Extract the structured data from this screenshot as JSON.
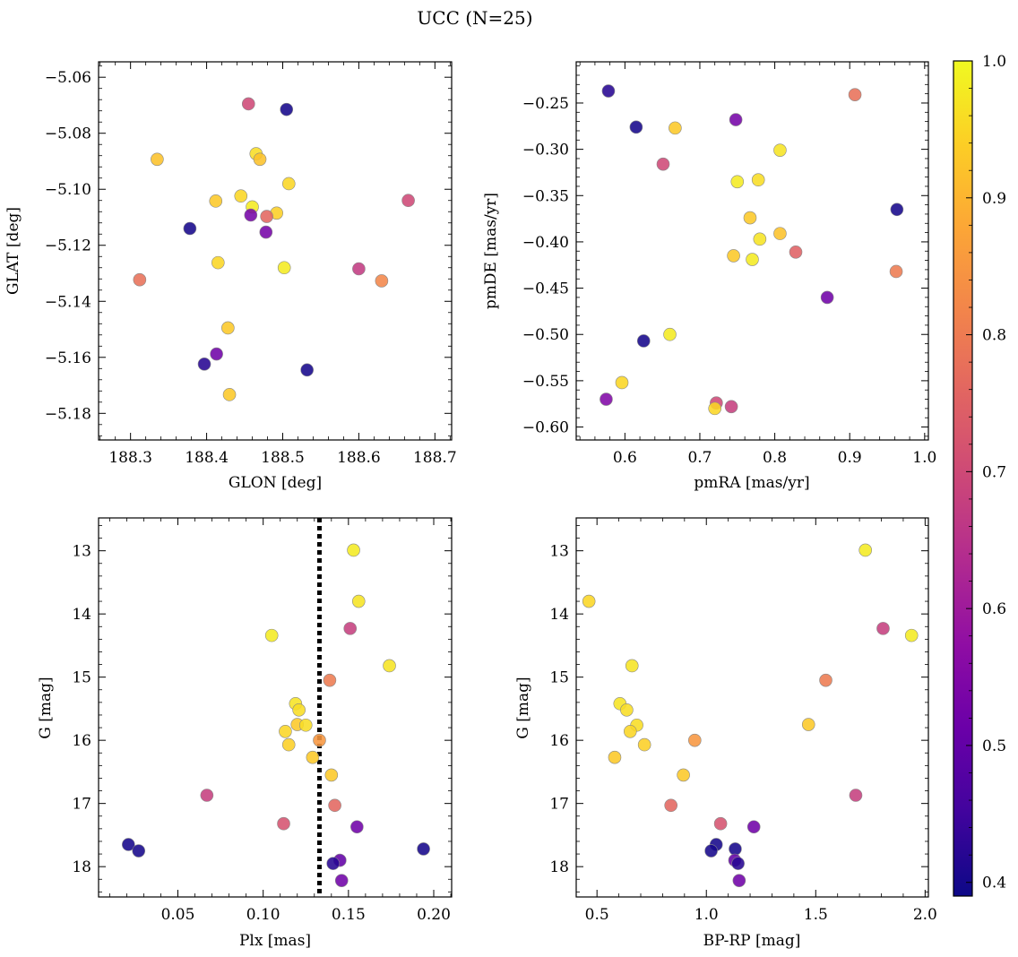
{
  "title": "UCC (N=25)",
  "colorbar": {
    "min": 0.39,
    "max": 1.0,
    "ticks": [
      "0.4",
      "0.5",
      "0.6",
      "0.7",
      "0.8",
      "0.9",
      "1.0"
    ],
    "tick_values": [
      0.4,
      0.5,
      0.6,
      0.7,
      0.8,
      0.9,
      1.0
    ],
    "colormap": "plasma"
  },
  "chart_data": [
    {
      "type": "scatter",
      "xlabel": "GLON [deg]",
      "ylabel": "GLAT [deg]",
      "xlim": [
        188.258,
        188.722
      ],
      "ylim": [
        -5.1895,
        -5.0545
      ],
      "y_inverted": false,
      "xticks": [
        188.3,
        188.4,
        188.5,
        188.6,
        188.7
      ],
      "xtick_labels": [
        "188.3",
        "188.4",
        "188.5",
        "188.6",
        "188.7"
      ],
      "yticks": [
        -5.06,
        -5.08,
        -5.1,
        -5.12,
        -5.14,
        -5.16,
        -5.18
      ],
      "ytick_labels": [
        "−5.06",
        "−5.08",
        "−5.10",
        "−5.12",
        "−5.14",
        "−5.16",
        "−5.18"
      ],
      "points": [
        {
          "x": 188.455,
          "y": -5.0695,
          "c": 0.7
        },
        {
          "x": 188.505,
          "y": -5.0715,
          "c": 0.4
        },
        {
          "x": 188.335,
          "y": -5.0893,
          "c": 0.92
        },
        {
          "x": 188.465,
          "y": -5.0873,
          "c": 0.96
        },
        {
          "x": 188.47,
          "y": -5.0893,
          "c": 0.92
        },
        {
          "x": 188.508,
          "y": -5.098,
          "c": 0.95
        },
        {
          "x": 188.445,
          "y": -5.1024,
          "c": 0.95
        },
        {
          "x": 188.412,
          "y": -5.1042,
          "c": 0.93
        },
        {
          "x": 188.46,
          "y": -5.1063,
          "c": 0.98
        },
        {
          "x": 188.665,
          "y": -5.104,
          "c": 0.7
        },
        {
          "x": 188.492,
          "y": -5.1085,
          "c": 0.94
        },
        {
          "x": 188.458,
          "y": -5.1092,
          "c": 0.53
        },
        {
          "x": 188.479,
          "y": -5.1097,
          "c": 0.76
        },
        {
          "x": 188.378,
          "y": -5.114,
          "c": 0.4
        },
        {
          "x": 188.478,
          "y": -5.1153,
          "c": 0.53
        },
        {
          "x": 188.415,
          "y": -5.1262,
          "c": 0.95
        },
        {
          "x": 188.502,
          "y": -5.128,
          "c": 0.98
        },
        {
          "x": 188.6,
          "y": -5.1284,
          "c": 0.67
        },
        {
          "x": 188.312,
          "y": -5.1323,
          "c": 0.78
        },
        {
          "x": 188.63,
          "y": -5.1327,
          "c": 0.82
        },
        {
          "x": 188.428,
          "y": -5.1495,
          "c": 0.93
        },
        {
          "x": 188.413,
          "y": -5.1588,
          "c": 0.52
        },
        {
          "x": 188.397,
          "y": -5.1624,
          "c": 0.42
        },
        {
          "x": 188.532,
          "y": -5.1645,
          "c": 0.4
        },
        {
          "x": 188.43,
          "y": -5.1733,
          "c": 0.93
        }
      ]
    },
    {
      "type": "scatter",
      "xlabel": "pmRA [mas/yr]",
      "ylabel": "pmDE [mas/yr]",
      "xlim": [
        0.535,
        1.005
      ],
      "ylim": [
        -0.614,
        -0.2055
      ],
      "y_inverted": false,
      "xticks": [
        0.6,
        0.7,
        0.8,
        0.9,
        1.0
      ],
      "xtick_labels": [
        "0.6",
        "0.7",
        "0.8",
        "0.9",
        "1.0"
      ],
      "yticks": [
        -0.25,
        -0.3,
        -0.35,
        -0.4,
        -0.45,
        -0.5,
        -0.55,
        -0.6
      ],
      "ytick_labels": [
        "−0.25",
        "−0.30",
        "−0.35",
        "−0.40",
        "−0.45",
        "−0.50",
        "−0.55",
        "−0.60"
      ],
      "points": [
        {
          "x": 0.578,
          "y": -0.237,
          "c": 0.42
        },
        {
          "x": 0.907,
          "y": -0.241,
          "c": 0.78
        },
        {
          "x": 0.748,
          "y": -0.268,
          "c": 0.53
        },
        {
          "x": 0.615,
          "y": -0.276,
          "c": 0.4
        },
        {
          "x": 0.667,
          "y": -0.277,
          "c": 0.93
        },
        {
          "x": 0.807,
          "y": -0.301,
          "c": 0.97
        },
        {
          "x": 0.651,
          "y": -0.316,
          "c": 0.7
        },
        {
          "x": 0.778,
          "y": -0.333,
          "c": 0.96
        },
        {
          "x": 0.75,
          "y": -0.335,
          "c": 0.98
        },
        {
          "x": 0.963,
          "y": -0.365,
          "c": 0.4
        },
        {
          "x": 0.767,
          "y": -0.374,
          "c": 0.93
        },
        {
          "x": 0.807,
          "y": -0.391,
          "c": 0.92
        },
        {
          "x": 0.78,
          "y": -0.397,
          "c": 0.97
        },
        {
          "x": 0.828,
          "y": -0.411,
          "c": 0.75
        },
        {
          "x": 0.745,
          "y": -0.415,
          "c": 0.93
        },
        {
          "x": 0.77,
          "y": -0.419,
          "c": 0.98
        },
        {
          "x": 0.962,
          "y": -0.432,
          "c": 0.8
        },
        {
          "x": 0.87,
          "y": -0.46,
          "c": 0.52
        },
        {
          "x": 0.66,
          "y": -0.5,
          "c": 0.98
        },
        {
          "x": 0.625,
          "y": -0.507,
          "c": 0.4
        },
        {
          "x": 0.596,
          "y": -0.552,
          "c": 0.95
        },
        {
          "x": 0.575,
          "y": -0.57,
          "c": 0.55
        },
        {
          "x": 0.722,
          "y": -0.574,
          "c": 0.7
        },
        {
          "x": 0.742,
          "y": -0.578,
          "c": 0.68
        },
        {
          "x": 0.72,
          "y": -0.58,
          "c": 0.95
        }
      ]
    },
    {
      "type": "scatter",
      "xlabel": "Plx [mas]",
      "ylabel": "G [mag]",
      "xlim": [
        0.0035,
        0.2105
      ],
      "ylim": [
        18.48,
        12.48
      ],
      "y_inverted": true,
      "xticks": [
        0.05,
        0.1,
        0.15,
        0.2
      ],
      "xtick_labels": [
        "0.05",
        "0.10",
        "0.15",
        "0.20"
      ],
      "yticks": [
        13,
        14,
        15,
        16,
        17,
        18
      ],
      "ytick_labels": [
        "13",
        "14",
        "15",
        "16",
        "17",
        "18"
      ],
      "vline": {
        "x": 0.133,
        "style": "dotted"
      },
      "points": [
        {
          "x": 0.153,
          "y": 12.99,
          "c": 0.98
        },
        {
          "x": 0.156,
          "y": 13.8,
          "c": 0.97
        },
        {
          "x": 0.151,
          "y": 14.23,
          "c": 0.68
        },
        {
          "x": 0.105,
          "y": 14.34,
          "c": 0.98
        },
        {
          "x": 0.174,
          "y": 14.82,
          "c": 0.97
        },
        {
          "x": 0.139,
          "y": 15.05,
          "c": 0.8
        },
        {
          "x": 0.119,
          "y": 15.42,
          "c": 0.97
        },
        {
          "x": 0.121,
          "y": 15.52,
          "c": 0.96
        },
        {
          "x": 0.12,
          "y": 15.75,
          "c": 0.93
        },
        {
          "x": 0.125,
          "y": 15.76,
          "c": 0.96
        },
        {
          "x": 0.113,
          "y": 15.86,
          "c": 0.95
        },
        {
          "x": 0.133,
          "y": 16.0,
          "c": 0.85
        },
        {
          "x": 0.115,
          "y": 16.07,
          "c": 0.94
        },
        {
          "x": 0.129,
          "y": 16.27,
          "c": 0.93
        },
        {
          "x": 0.14,
          "y": 16.55,
          "c": 0.93
        },
        {
          "x": 0.067,
          "y": 16.87,
          "c": 0.68
        },
        {
          "x": 0.142,
          "y": 17.03,
          "c": 0.76
        },
        {
          "x": 0.112,
          "y": 17.32,
          "c": 0.72
        },
        {
          "x": 0.155,
          "y": 17.37,
          "c": 0.52
        },
        {
          "x": 0.021,
          "y": 17.65,
          "c": 0.4
        },
        {
          "x": 0.194,
          "y": 17.72,
          "c": 0.4
        },
        {
          "x": 0.027,
          "y": 17.75,
          "c": 0.4
        },
        {
          "x": 0.145,
          "y": 17.9,
          "c": 0.5
        },
        {
          "x": 0.141,
          "y": 17.95,
          "c": 0.42
        },
        {
          "x": 0.146,
          "y": 18.22,
          "c": 0.52
        }
      ]
    },
    {
      "type": "scatter",
      "xlabel": "BP-RP [mag]",
      "ylabel": "G [mag]",
      "xlim": [
        0.405,
        2.015
      ],
      "ylim": [
        18.48,
        12.48
      ],
      "y_inverted": true,
      "xticks": [
        0.5,
        1.0,
        1.5,
        2.0
      ],
      "xtick_labels": [
        "0.5",
        "1.0",
        "1.5",
        "2.0"
      ],
      "yticks": [
        13,
        14,
        15,
        16,
        17,
        18
      ],
      "ytick_labels": [
        "13",
        "14",
        "15",
        "16",
        "17",
        "18"
      ],
      "points": [
        {
          "x": 1.727,
          "y": 12.99,
          "c": 0.98
        },
        {
          "x": 0.463,
          "y": 13.8,
          "c": 0.95
        },
        {
          "x": 1.808,
          "y": 14.23,
          "c": 0.68
        },
        {
          "x": 1.938,
          "y": 14.34,
          "c": 0.98
        },
        {
          "x": 0.66,
          "y": 14.82,
          "c": 0.97
        },
        {
          "x": 1.546,
          "y": 15.05,
          "c": 0.8
        },
        {
          "x": 0.605,
          "y": 15.42,
          "c": 0.97
        },
        {
          "x": 0.636,
          "y": 15.52,
          "c": 0.96
        },
        {
          "x": 1.467,
          "y": 15.75,
          "c": 0.93
        },
        {
          "x": 0.682,
          "y": 15.76,
          "c": 0.96
        },
        {
          "x": 0.652,
          "y": 15.86,
          "c": 0.95
        },
        {
          "x": 0.947,
          "y": 16.0,
          "c": 0.85
        },
        {
          "x": 0.717,
          "y": 16.07,
          "c": 0.94
        },
        {
          "x": 0.581,
          "y": 16.27,
          "c": 0.93
        },
        {
          "x": 0.895,
          "y": 16.55,
          "c": 0.93
        },
        {
          "x": 1.683,
          "y": 16.87,
          "c": 0.68
        },
        {
          "x": 0.838,
          "y": 17.03,
          "c": 0.76
        },
        {
          "x": 1.065,
          "y": 17.32,
          "c": 0.72
        },
        {
          "x": 1.217,
          "y": 17.37,
          "c": 0.52
        },
        {
          "x": 1.045,
          "y": 17.65,
          "c": 0.4
        },
        {
          "x": 1.132,
          "y": 17.72,
          "c": 0.4
        },
        {
          "x": 1.022,
          "y": 17.75,
          "c": 0.4
        },
        {
          "x": 1.13,
          "y": 17.9,
          "c": 0.5
        },
        {
          "x": 1.145,
          "y": 17.95,
          "c": 0.42
        },
        {
          "x": 1.15,
          "y": 18.22,
          "c": 0.52
        }
      ]
    }
  ]
}
